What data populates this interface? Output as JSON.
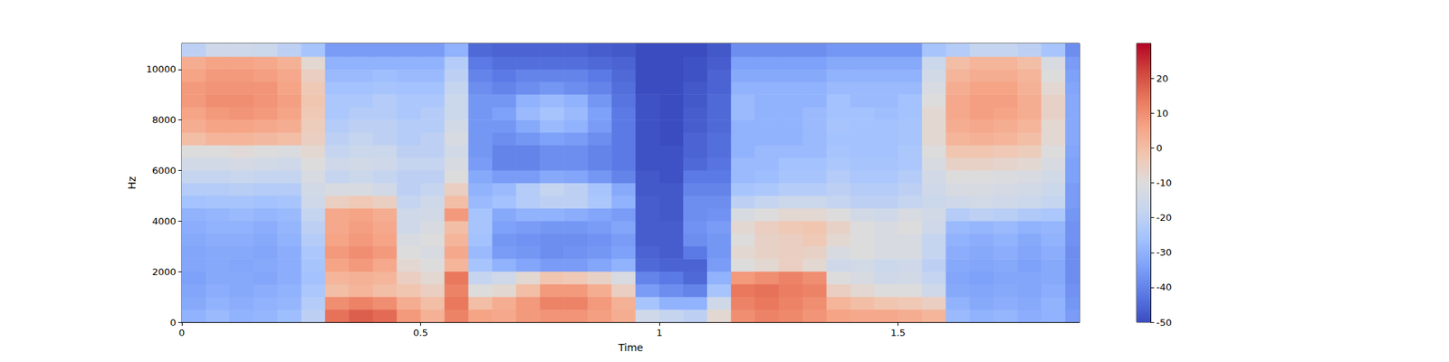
{
  "chart_data": {
    "type": "heatmap",
    "xlabel": "Time",
    "ylabel": "Hz",
    "xlim": [
      0,
      1.88
    ],
    "xticks": [
      0,
      0.5,
      1,
      1.5
    ],
    "ylim": [
      0,
      11025
    ],
    "yticks": [
      0,
      2000,
      4000,
      6000,
      8000,
      10000
    ],
    "colorbar_range": [
      -50,
      30
    ],
    "colorbar_ticks": [
      -50,
      -40,
      -30,
      -20,
      -10,
      0,
      10,
      20
    ],
    "x_edges": [
      0,
      0.05,
      0.1,
      0.15,
      0.2,
      0.25,
      0.3,
      0.35,
      0.4,
      0.45,
      0.5,
      0.55,
      0.6,
      0.65,
      0.7,
      0.75,
      0.8,
      0.85,
      0.9,
      0.95,
      1,
      1.05,
      1.1,
      1.15,
      1.2,
      1.25,
      1.3,
      1.35,
      1.4,
      1.45,
      1.5,
      1.55,
      1.6,
      1.65,
      1.7,
      1.75,
      1.8,
      1.85,
      1.9
    ],
    "y_edges": [
      0,
      500,
      1000,
      1500,
      2000,
      2500,
      3000,
      3500,
      4000,
      4500,
      5000,
      5500,
      6000,
      6500,
      7000,
      7500,
      8000,
      8500,
      9000,
      9500,
      10000,
      10500,
      11025
    ],
    "values": [
      [
        -30,
        -28,
        -30,
        -29,
        -27,
        -20,
        15,
        18,
        16,
        8,
        3,
        12,
        6,
        5,
        8,
        9,
        9,
        7,
        4,
        -15,
        -18,
        -20,
        -8,
        10,
        12,
        11,
        9,
        6,
        5,
        5,
        4,
        2,
        -28,
        -30,
        -29,
        -31,
        -30,
        -35
      ],
      [
        -32,
        -30,
        -31,
        -30,
        -29,
        -22,
        10,
        12,
        10,
        4,
        0,
        14,
        0,
        4,
        8,
        12,
        12,
        8,
        3,
        -25,
        -30,
        -30,
        -15,
        12,
        14,
        12,
        10,
        2,
        0,
        -2,
        -3,
        -5,
        -30,
        -32,
        -31,
        -32,
        -30,
        -36
      ],
      [
        -33,
        -31,
        -32,
        -31,
        -30,
        -24,
        0,
        2,
        0,
        -2,
        -5,
        12,
        -10,
        -8,
        0,
        8,
        8,
        4,
        -5,
        -35,
        -38,
        -40,
        -25,
        14,
        15,
        13,
        12,
        -5,
        -8,
        -10,
        -10,
        -15,
        -32,
        -33,
        -32,
        -33,
        -31,
        -37
      ],
      [
        -34,
        -32,
        -32,
        -33,
        -31,
        -26,
        2,
        3,
        2,
        -5,
        -8,
        14,
        -18,
        -15,
        -8,
        -2,
        -3,
        -6,
        -12,
        -40,
        -42,
        -45,
        -30,
        8,
        10,
        12,
        10,
        -10,
        -12,
        -15,
        -14,
        -18,
        -33,
        -34,
        -33,
        -33,
        -32,
        -38
      ],
      [
        -33,
        -32,
        -33,
        -32,
        -31,
        -25,
        6,
        8,
        5,
        -8,
        -10,
        2,
        -25,
        -30,
        -33,
        -35,
        -35,
        -33,
        -30,
        -45,
        -46,
        -46,
        -35,
        -10,
        -8,
        -5,
        -8,
        -15,
        -14,
        -16,
        -15,
        -20,
        -32,
        -33,
        -32,
        -34,
        -32,
        -38
      ],
      [
        -33,
        -32,
        -32,
        -33,
        -31,
        -24,
        8,
        10,
        8,
        -10,
        -12,
        5,
        -28,
        -35,
        -36,
        -38,
        -37,
        -36,
        -34,
        -46,
        -47,
        -42,
        -36,
        -8,
        -6,
        -5,
        -6,
        -12,
        -10,
        -12,
        -12,
        -18,
        -31,
        -32,
        -31,
        -33,
        -31,
        -38
      ],
      [
        -32,
        -31,
        -31,
        -32,
        -30,
        -22,
        6,
        8,
        6,
        -12,
        -10,
        2,
        -26,
        -36,
        -37,
        -38,
        -38,
        -37,
        -35,
        -47,
        -47,
        -38,
        -36,
        -10,
        -6,
        -5,
        -3,
        -8,
        -10,
        -12,
        -12,
        -18,
        -30,
        -31,
        -30,
        -32,
        -30,
        -37
      ],
      [
        -31,
        -30,
        -30,
        -31,
        -29,
        -20,
        5,
        7,
        5,
        -15,
        -12,
        0,
        -25,
        -34,
        -35,
        -36,
        -36,
        -35,
        -33,
        -47,
        -47,
        -37,
        -35,
        -8,
        -5,
        -3,
        -2,
        -6,
        -10,
        -12,
        -10,
        -15,
        -28,
        -29,
        -28,
        -30,
        -29,
        -37
      ],
      [
        -30,
        -29,
        -28,
        -29,
        -28,
        -18,
        5,
        6,
        4,
        -15,
        -14,
        8,
        -25,
        -32,
        -30,
        -30,
        -31,
        -33,
        -35,
        -47,
        -48,
        -38,
        -37,
        -12,
        -10,
        -8,
        -8,
        -10,
        -14,
        -15,
        -12,
        -14,
        -22,
        -20,
        -21,
        -23,
        -24,
        -36
      ],
      [
        -26,
        -25,
        -25,
        -26,
        -25,
        -15,
        -5,
        -3,
        -5,
        -18,
        -15,
        0,
        -28,
        -26,
        -22,
        -20,
        -20,
        -24,
        -30,
        -47,
        -48,
        -38,
        -38,
        -20,
        -18,
        -16,
        -16,
        -18,
        -20,
        -20,
        -18,
        -16,
        -15,
        -14,
        -15,
        -16,
        -18,
        -35
      ],
      [
        -22,
        -22,
        -21,
        -22,
        -22,
        -14,
        -12,
        -12,
        -14,
        -20,
        -18,
        -5,
        -30,
        -28,
        -22,
        -18,
        -20,
        -25,
        -32,
        -48,
        -48,
        -40,
        -40,
        -25,
        -24,
        -22,
        -22,
        -20,
        -22,
        -22,
        -20,
        -15,
        -12,
        -12,
        -13,
        -14,
        -16,
        -35
      ],
      [
        -18,
        -18,
        -17,
        -18,
        -18,
        -12,
        -18,
        -16,
        -18,
        -20,
        -20,
        -10,
        -32,
        -35,
        -35,
        -32,
        -33,
        -36,
        -40,
        -48,
        -49,
        -42,
        -42,
        -28,
        -27,
        -25,
        -25,
        -22,
        -24,
        -24,
        -22,
        -14,
        -10,
        -10,
        -11,
        -12,
        -14,
        -34
      ],
      [
        -14,
        -14,
        -13,
        -14,
        -15,
        -10,
        -15,
        -14,
        -15,
        -18,
        -18,
        -12,
        -35,
        -40,
        -40,
        -38,
        -38,
        -40,
        -42,
        -49,
        -49,
        -45,
        -43,
        -28,
        -28,
        -26,
        -26,
        -24,
        -25,
        -25,
        -24,
        -12,
        -6,
        -6,
        -7,
        -8,
        -12,
        -34
      ],
      [
        -10,
        -10,
        -9,
        -10,
        -11,
        -8,
        -18,
        -16,
        -16,
        -20,
        -20,
        -14,
        -36,
        -40,
        -40,
        -38,
        -38,
        -40,
        -42,
        -49,
        -49,
        -46,
        -44,
        -30,
        -28,
        -28,
        -28,
        -25,
        -26,
        -26,
        -24,
        -10,
        -2,
        -2,
        -3,
        -4,
        -10,
        -33
      ],
      [
        0,
        2,
        2,
        1,
        0,
        -5,
        -20,
        -18,
        -20,
        -22,
        -20,
        -12,
        -36,
        -38,
        -36,
        -34,
        -35,
        -38,
        -42,
        -49,
        -50,
        -46,
        -44,
        -30,
        -30,
        -30,
        -28,
        -26,
        -26,
        -26,
        -25,
        -8,
        2,
        3,
        2,
        0,
        -8,
        -32
      ],
      [
        4,
        6,
        6,
        5,
        4,
        -4,
        -22,
        -20,
        -20,
        -22,
        -22,
        -14,
        -36,
        -36,
        -32,
        -28,
        -30,
        -35,
        -42,
        -49,
        -50,
        -47,
        -45,
        -30,
        -30,
        -30,
        -28,
        -25,
        -26,
        -26,
        -25,
        -8,
        4,
        5,
        4,
        2,
        -8,
        -32
      ],
      [
        6,
        8,
        9,
        8,
        6,
        -3,
        -24,
        -22,
        -22,
        -24,
        -22,
        -16,
        -36,
        -34,
        -28,
        -25,
        -28,
        -34,
        -42,
        -49,
        -50,
        -47,
        -45,
        -28,
        -30,
        -30,
        -28,
        -26,
        -26,
        -27,
        -26,
        -8,
        5,
        7,
        6,
        4,
        -6,
        -32
      ],
      [
        8,
        10,
        10,
        9,
        7,
        -2,
        -24,
        -24,
        -22,
        -24,
        -24,
        -16,
        -36,
        -36,
        -30,
        -28,
        -30,
        -36,
        -43,
        -49,
        -50,
        -48,
        -45,
        -28,
        -30,
        -30,
        -30,
        -26,
        -28,
        -28,
        -26,
        -10,
        5,
        7,
        7,
        4,
        -6,
        -32
      ],
      [
        8,
        9,
        9,
        9,
        6,
        -3,
        -26,
        -26,
        -25,
        -26,
        -26,
        -18,
        -38,
        -40,
        -38,
        -36,
        -38,
        -40,
        -44,
        -50,
        -50,
        -48,
        -46,
        -30,
        -30,
        -30,
        -30,
        -28,
        -28,
        -28,
        -28,
        -12,
        4,
        6,
        6,
        3,
        -8,
        -33
      ],
      [
        6,
        8,
        8,
        7,
        5,
        -5,
        -28,
        -28,
        -27,
        -28,
        -28,
        -20,
        -40,
        -42,
        -40,
        -40,
        -40,
        -42,
        -45,
        -50,
        -50,
        -49,
        -46,
        -32,
        -32,
        -32,
        -32,
        -30,
        -30,
        -30,
        -30,
        -14,
        2,
        4,
        4,
        2,
        -10,
        -34
      ],
      [
        4,
        6,
        6,
        5,
        3,
        -8,
        -30,
        -30,
        -30,
        -30,
        -30,
        -22,
        -42,
        -44,
        -44,
        -44,
        -44,
        -45,
        -46,
        -50,
        -50,
        -49,
        -47,
        -34,
        -34,
        -34,
        -34,
        -32,
        -32,
        -32,
        -32,
        -16,
        0,
        2,
        2,
        0,
        -12,
        -35
      ],
      [
        -20,
        -15,
        -15,
        -16,
        -20,
        -25,
        -35,
        -35,
        -35,
        -35,
        -35,
        -30,
        -45,
        -46,
        -46,
        -46,
        -46,
        -47,
        -48,
        -50,
        -50,
        -50,
        -48,
        -38,
        -38,
        -38,
        -38,
        -36,
        -36,
        -36,
        -36,
        -25,
        -22,
        -18,
        -18,
        -20,
        -25,
        -38
      ]
    ]
  }
}
